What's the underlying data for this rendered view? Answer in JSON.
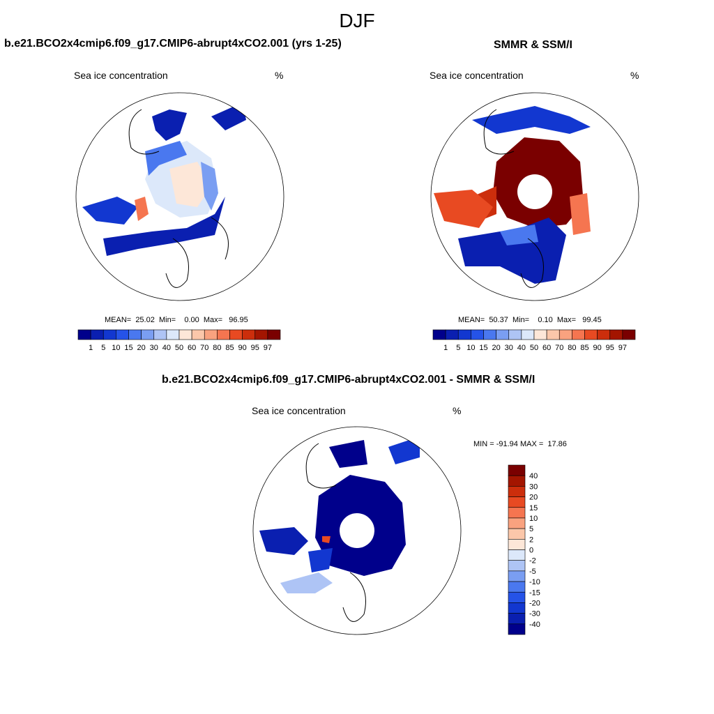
{
  "season_title": "DJF",
  "panels": {
    "model": {
      "title": "b.e21.BCO2x4cmip6.f09_g17.CMIP6-abrupt4xCO2.001 (yrs 1-25)",
      "field_label": "Sea ice concentration",
      "unit": "%",
      "stats": "MEAN=  25.02  Min=    0.00  Max=   96.95"
    },
    "obs": {
      "title": "SMMR & SSM/I",
      "field_label": "Sea ice concentration",
      "unit": "%",
      "stats": "MEAN=  50.37  Min=    0.10  Max=   99.45"
    },
    "diff": {
      "title": "b.e21.BCO2x4cmip6.f09_g17.CMIP6-abrupt4xCO2.001 - SMMR & SSM/I",
      "field_label": "Sea ice concentration",
      "unit": "%",
      "stats": "MIN = -91.94 MAX =  17.86"
    }
  },
  "colorbar_abs": {
    "ticks": [
      "1",
      "5",
      "10",
      "15",
      "20",
      "30",
      "40",
      "50",
      "60",
      "70",
      "80",
      "85",
      "90",
      "95",
      "97"
    ],
    "colors": [
      "#00008b",
      "#0a1fb0",
      "#1237d0",
      "#2553e8",
      "#4a78ef",
      "#7a9ef2",
      "#aec4f5",
      "#dce8fa",
      "#fde7d8",
      "#fbc7aa",
      "#f9a27f",
      "#f57550",
      "#e84a22",
      "#cc2e0c",
      "#a31500",
      "#7a0000"
    ]
  },
  "colorbar_diff": {
    "ticks": [
      "40",
      "30",
      "20",
      "15",
      "10",
      "5",
      "2",
      "0",
      "-2",
      "-5",
      "-10",
      "-15",
      "-20",
      "-30",
      "-40"
    ],
    "colors": [
      "#7a0000",
      "#a31500",
      "#cc2e0c",
      "#e84a22",
      "#f57550",
      "#f9a27f",
      "#fbc7aa",
      "#fde7d8",
      "#dce8fa",
      "#aec4f5",
      "#7a9ef2",
      "#4a78ef",
      "#2553e8",
      "#1237d0",
      "#0a1fb0",
      "#00008b"
    ]
  }
}
